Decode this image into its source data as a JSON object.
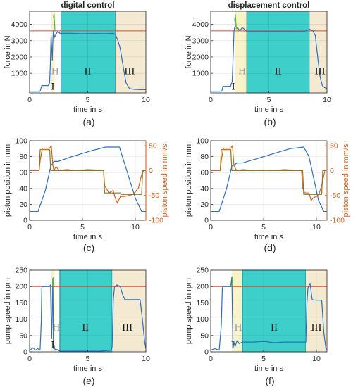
{
  "figure": {
    "colors": {
      "blue": "#2d6fbf",
      "orange": "#d95f1a",
      "red_ref": "#e8472b",
      "green": "#5ab52e",
      "olive": "#8a7a1e",
      "cyan_region": "#3fcfcb",
      "beige_region": "#f4ead2",
      "yellow_region": "#fbf3c8",
      "grey_text": "#a0a0a0"
    }
  },
  "chart_data": [
    {
      "id": "a",
      "type": "line",
      "title": "digital control",
      "panel_label": "(a)",
      "xlabel": "time in s",
      "ylabel": "force in N",
      "xlim": [
        0,
        10
      ],
      "ylim": [
        -200,
        4800
      ],
      "xticks": [
        0,
        5,
        10
      ],
      "yticks": [
        1000,
        2000,
        3000,
        4000
      ],
      "grid": true,
      "regions": [
        {
          "name": "H",
          "x0": 1.85,
          "x1": 2.15,
          "color": "yellow_region",
          "label_x": 2.2,
          "label_y": 1150,
          "label_color": "grey_text"
        },
        {
          "name": "II",
          "x0": 2.7,
          "x1": 7.4,
          "color": "cyan_region",
          "label_x": 5.0,
          "label_y": 1150
        },
        {
          "name": "III",
          "x0": 7.4,
          "x1": 10.2,
          "color": "beige_region",
          "label_x": 8.6,
          "label_y": 1150
        }
      ],
      "annotations": [
        {
          "text": "I",
          "x": 2.0,
          "y": -100
        }
      ],
      "reference_lines": [
        {
          "y": 3600,
          "color": "red_ref"
        }
      ],
      "series": [
        {
          "color": "blue",
          "x": [
            0,
            0.9,
            1.05,
            1.6,
            1.72,
            1.78,
            1.85,
            1.95,
            2.0,
            2.05,
            2.15,
            2.25,
            2.4,
            2.6,
            2.7,
            3.5,
            4.5,
            5.5,
            6.5,
            7.2,
            7.4,
            7.6,
            7.8,
            8.1,
            8.3,
            8.6,
            9.0,
            9.5,
            10.0
          ],
          "y": [
            -100,
            -100,
            250,
            250,
            400,
            1500,
            3300,
            1800,
            3000,
            3600,
            3200,
            3350,
            3550,
            3450,
            3450,
            3450,
            3420,
            3440,
            3430,
            3450,
            3350,
            3000,
            2500,
            1200,
            400,
            60,
            20,
            0,
            0
          ]
        },
        {
          "color": "green",
          "x": [
            2.05,
            2.1,
            2.18
          ],
          "y": [
            4400,
            4650,
            3600
          ]
        }
      ]
    },
    {
      "id": "b",
      "type": "line",
      "title": "displacement control",
      "panel_label": "(b)",
      "xlabel": "time in s",
      "ylabel": "force in N",
      "xlim": [
        0,
        10
      ],
      "ylim": [
        -200,
        4800
      ],
      "xticks": [
        0,
        5,
        10
      ],
      "yticks": [
        1000,
        2000,
        3000,
        4000
      ],
      "grid": true,
      "regions": [
        {
          "name": "H",
          "x0": 2.1,
          "x1": 3.1,
          "color": "yellow_region",
          "label_x": 2.7,
          "label_y": 1150,
          "label_color": "grey_text"
        },
        {
          "name": "II",
          "x0": 3.1,
          "x1": 8.5,
          "color": "cyan_region",
          "label_x": 5.8,
          "label_y": 1150
        },
        {
          "name": "III",
          "x0": 8.5,
          "x1": 10.3,
          "color": "beige_region",
          "label_x": 9.4,
          "label_y": 1150
        }
      ],
      "annotations": [
        {
          "text": "I",
          "x": 1.95,
          "y": -100
        }
      ],
      "reference_lines": [
        {
          "y": 3600,
          "color": "red_ref"
        }
      ],
      "series": [
        {
          "color": "blue",
          "x": [
            0,
            0.95,
            1.05,
            1.7,
            1.85,
            1.95,
            2.0,
            2.1,
            2.3,
            2.5,
            2.7,
            2.9,
            3.1,
            4.0,
            5.0,
            6.0,
            7.0,
            8.0,
            8.5,
            8.8,
            9.0,
            9.2,
            9.4,
            9.6,
            9.8,
            10.0
          ],
          "y": [
            -100,
            -100,
            200,
            200,
            500,
            2500,
            3600,
            3900,
            3800,
            3600,
            3800,
            3700,
            3550,
            3560,
            3550,
            3555,
            3550,
            3560,
            3700,
            3600,
            3300,
            2000,
            800,
            250,
            120,
            80
          ]
        },
        {
          "color": "green",
          "x": [
            2.05,
            2.12,
            2.2
          ],
          "y": [
            4200,
            4600,
            3700
          ]
        }
      ]
    },
    {
      "id": "c",
      "type": "line",
      "panel_label": "(c)",
      "xlabel": "time in s",
      "ylabel": "piston position in mm",
      "ylabel_right": "piston speed in mm/s",
      "xlim": [
        0,
        11
      ],
      "ylim": [
        0,
        100
      ],
      "ylim_right": [
        -100,
        60
      ],
      "xticks": [
        0,
        5,
        10
      ],
      "yticks": [
        0,
        20,
        40,
        60,
        80,
        100
      ],
      "yticks_right": [
        -100,
        -50,
        0,
        50
      ],
      "grid": true,
      "series": [
        {
          "name": "position",
          "axis": "left",
          "color": "blue",
          "x": [
            0,
            0.8,
            1.5,
            2.0,
            2.3,
            2.7,
            4.0,
            5.0,
            6.0,
            7.2,
            8.5,
            10.0,
            10.6,
            11.0
          ],
          "y": [
            11,
            11,
            38,
            68,
            74,
            74,
            80,
            84,
            88,
            92,
            92,
            28,
            11,
            11
          ]
        },
        {
          "name": "speed",
          "axis": "right",
          "color": "orange",
          "x": [
            0,
            0.9,
            1.0,
            1.2,
            1.9,
            2.05,
            2.2,
            2.3,
            2.5,
            2.8,
            3.5,
            4.5,
            5.5,
            6.5,
            7.0,
            7.1,
            7.5,
            7.9,
            8.1,
            8.3,
            8.6,
            9.0,
            9.8,
            10.3,
            10.6,
            10.8,
            11.0
          ],
          "y": [
            0,
            0,
            20,
            45,
            45,
            50,
            10,
            0,
            8,
            0,
            2,
            0,
            2,
            1,
            0,
            -30,
            -45,
            -40,
            -55,
            -65,
            -52,
            -52,
            -48,
            -35,
            -8,
            0,
            0
          ]
        },
        {
          "name": "speed-setpoint",
          "axis": "right",
          "color": "olive",
          "x": [
            0.9,
            1.0,
            1.9,
            2.0,
            2.3,
            2.5,
            7.0,
            7.1,
            8.6,
            8.7,
            10.6,
            10.7,
            11.0
          ],
          "y": [
            0,
            42,
            42,
            0,
            0,
            0,
            0,
            -45,
            -45,
            -48,
            -48,
            0,
            0
          ]
        }
      ]
    },
    {
      "id": "d",
      "type": "line",
      "panel_label": "(d)",
      "xlabel": "time in s",
      "ylabel": "piston position in mm",
      "ylabel_right": "piston speed in mm/s",
      "xlim": [
        0,
        11
      ],
      "ylim": [
        0,
        100
      ],
      "ylim_right": [
        -100,
        60
      ],
      "xticks": [
        0,
        5,
        10
      ],
      "yticks": [
        0,
        20,
        40,
        60,
        80,
        100
      ],
      "yticks_right": [
        -100,
        -50,
        0,
        50
      ],
      "grid": true,
      "series": [
        {
          "name": "position",
          "axis": "left",
          "color": "blue",
          "x": [
            0,
            0.8,
            1.5,
            2.0,
            2.5,
            3.0,
            4.5,
            6.0,
            7.5,
            8.8,
            9.3,
            10.2,
            10.7,
            11.0
          ],
          "y": [
            11,
            11,
            40,
            68,
            72,
            72,
            78,
            84,
            90,
            92,
            80,
            25,
            11,
            11
          ]
        },
        {
          "name": "speed",
          "axis": "right",
          "color": "orange",
          "x": [
            0,
            0.9,
            1.0,
            1.2,
            1.9,
            2.05,
            2.2,
            2.4,
            2.7,
            3.0,
            4.0,
            5.0,
            6.0,
            7.0,
            8.0,
            8.6,
            8.7,
            8.9,
            9.3,
            9.5,
            9.7,
            10.2,
            10.5,
            10.8,
            11.0
          ],
          "y": [
            0,
            0,
            20,
            45,
            45,
            50,
            10,
            2,
            0,
            2,
            0,
            1,
            0,
            2,
            0,
            0,
            -35,
            -45,
            -45,
            -60,
            -55,
            -50,
            -30,
            0,
            0
          ]
        },
        {
          "name": "speed-setpoint",
          "axis": "right",
          "color": "olive",
          "x": [
            0.9,
            1.0,
            1.9,
            2.0,
            8.7,
            8.8,
            10.5,
            10.6,
            11.0
          ],
          "y": [
            0,
            42,
            42,
            0,
            0,
            -48,
            -48,
            0,
            0
          ]
        }
      ]
    },
    {
      "id": "e",
      "type": "line",
      "panel_label": "(e)",
      "xlabel": "time in s",
      "ylabel": "pump speed in rpm",
      "xlim": [
        0,
        10
      ],
      "ylim": [
        0,
        250
      ],
      "xticks": [
        0,
        5,
        10
      ],
      "yticks": [
        0,
        50,
        100,
        150,
        200,
        250
      ],
      "grid": true,
      "regions": [
        {
          "name": "H",
          "x0": 1.85,
          "x1": 2.15,
          "color": "yellow_region",
          "label_x": 2.3,
          "label_y": 75,
          "label_color": "grey_text"
        },
        {
          "name": "II",
          "x0": 2.6,
          "x1": 7.1,
          "color": "cyan_region",
          "label_x": 4.8,
          "label_y": 75
        },
        {
          "name": "III",
          "x0": 7.1,
          "x1": 10.2,
          "color": "beige_region",
          "label_x": 8.4,
          "label_y": 75
        }
      ],
      "annotations": [
        {
          "text": "I",
          "x": 2.0,
          "y": 8
        }
      ],
      "reference_lines": [
        {
          "y": 200,
          "color": "red_ref"
        }
      ],
      "series": [
        {
          "color": "blue",
          "x": [
            0,
            0.3,
            0.5,
            0.7,
            0.9,
            1.0,
            1.05,
            1.1,
            1.7,
            1.8,
            1.85,
            1.9,
            2.0,
            2.05,
            2.1,
            2.2,
            2.3,
            2.5,
            2.6,
            4.0,
            5.0,
            6.0,
            7.0,
            7.1,
            7.2,
            7.3,
            7.5,
            7.8,
            8.0,
            8.2,
            8.5,
            9.0,
            9.5,
            9.7,
            9.9,
            10.0
          ],
          "y": [
            5,
            12,
            5,
            10,
            5,
            90,
            195,
            200,
            200,
            205,
            110,
            40,
            225,
            10,
            20,
            5,
            8,
            4,
            2,
            2,
            2,
            2,
            5,
            15,
            160,
            198,
            205,
            200,
            175,
            160,
            160,
            160,
            160,
            100,
            30,
            10
          ]
        },
        {
          "color": "green",
          "x": [
            2.0,
            2.05,
            2.1
          ],
          "y": [
            200,
            228,
            200
          ]
        }
      ]
    },
    {
      "id": "f",
      "type": "line",
      "panel_label": "(f)",
      "xlabel": "time in s",
      "ylabel": "pump speed in rpm",
      "xlim": [
        0,
        11
      ],
      "ylim": [
        0,
        250
      ],
      "xticks": [
        0,
        5,
        10
      ],
      "yticks": [
        0,
        50,
        100,
        150,
        200,
        250
      ],
      "grid": true,
      "regions": [
        {
          "name": "H",
          "x0": 2.0,
          "x1": 3.0,
          "color": "yellow_region",
          "label_x": 2.6,
          "label_y": 75,
          "label_color": "grey_text"
        },
        {
          "name": "II",
          "x0": 3.0,
          "x1": 9.0,
          "color": "cyan_region",
          "label_x": 6.0,
          "label_y": 75
        },
        {
          "name": "III",
          "x0": 9.0,
          "x1": 11.0,
          "color": "beige_region",
          "label_x": 10.0,
          "label_y": 75
        }
      ],
      "annotations": [
        {
          "text": "I",
          "x": 2.1,
          "y": 8
        }
      ],
      "reference_lines": [
        {
          "y": 200,
          "color": "red_ref"
        }
      ],
      "series": [
        {
          "color": "blue",
          "x": [
            0,
            0.4,
            0.8,
            1.0,
            1.1,
            1.15,
            1.9,
            2.0,
            2.1,
            2.2,
            2.3,
            2.5,
            2.7,
            3.0,
            4.0,
            5.0,
            6.0,
            7.0,
            8.0,
            9.0,
            9.1,
            9.2,
            9.4,
            9.6,
            10.0,
            10.5,
            10.7,
            10.9,
            11.0
          ],
          "y": [
            5,
            10,
            5,
            80,
            195,
            200,
            200,
            230,
            10,
            30,
            15,
            35,
            25,
            30,
            30,
            32,
            28,
            30,
            30,
            30,
            150,
            195,
            210,
            160,
            158,
            158,
            60,
            10,
            8
          ]
        },
        {
          "color": "green",
          "x": [
            2.0,
            2.05,
            2.1
          ],
          "y": [
            200,
            230,
            200
          ]
        }
      ]
    }
  ]
}
